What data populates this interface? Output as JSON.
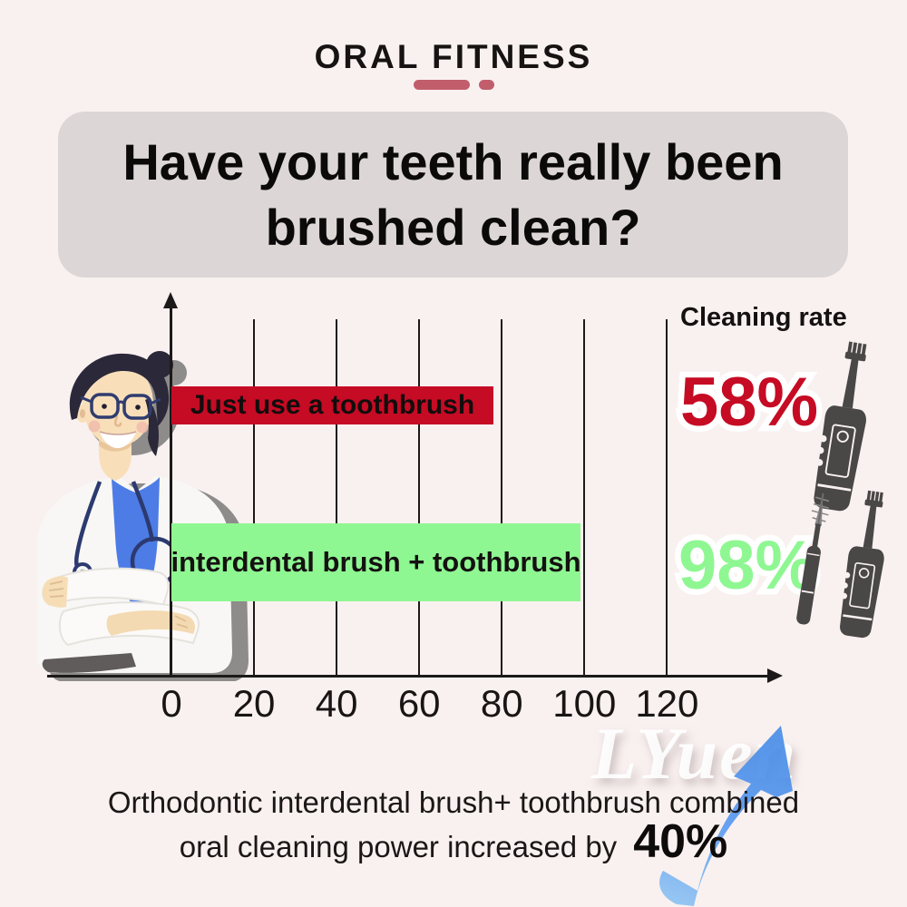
{
  "header": {
    "brand": "ORAL FITNESS"
  },
  "title": {
    "line1": "Have your teeth really been",
    "line2": "brushed clean?"
  },
  "chart_data": {
    "type": "bar",
    "orientation": "horizontal",
    "title": "",
    "axis_annotation": "Cleaning rate",
    "categories": [
      "Just use a toothbrush",
      "interdental brush + toothbrush"
    ],
    "values": [
      58,
      98
    ],
    "value_labels": [
      "58%",
      "98%"
    ],
    "bar_visual_lengths_axis_units": [
      78,
      99
    ],
    "bar_colors": [
      "#c60b24",
      "#8ff792"
    ],
    "value_label_colors": [
      "#c60b24",
      "#8ff792"
    ],
    "x_ticks": [
      0,
      20,
      40,
      60,
      80,
      100,
      120
    ],
    "xlim": [
      0,
      130
    ],
    "grid": true,
    "legend_position": "top-right"
  },
  "icons": {
    "row1": "electric-toothbrush-icon",
    "row2": [
      "interdental-brush-icon",
      "electric-toothbrush-icon"
    ],
    "icon_color": "#4a4747"
  },
  "watermark": {
    "text": "LYuen"
  },
  "footer": {
    "line1": "Orthodontic interdental brush+ toothbrush combined",
    "line2": "oral cleaning power increased by",
    "highlight": "40%"
  },
  "colors": {
    "background": "#f9f1f0",
    "title_box": "#dcd7d6",
    "accent_rose": "#c25d6c",
    "bar_red": "#c60b24",
    "bar_green": "#8ff792",
    "icon_gray": "#4a4747",
    "arrow_blue": "#5b9af0"
  }
}
